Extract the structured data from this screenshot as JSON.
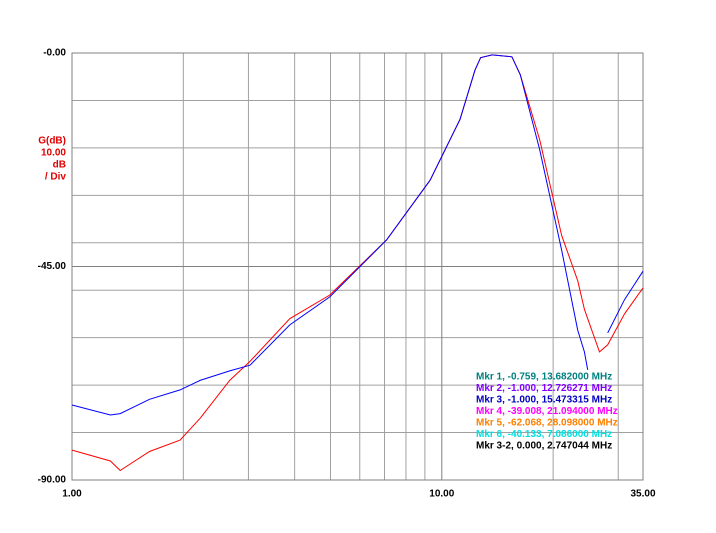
{
  "chart_data": {
    "type": "line",
    "xscale": "log",
    "xlim": [
      1,
      35
    ],
    "ylim": [
      -90,
      0
    ],
    "xticks": [
      {
        "value": 1,
        "label": "1.00"
      },
      {
        "value": 10,
        "label": "10.00"
      },
      {
        "value": 35,
        "label": "35.00"
      }
    ],
    "yticks": [
      {
        "value": 0,
        "label": "-0.00"
      },
      {
        "value": -45,
        "label": "-45.00"
      },
      {
        "value": -90,
        "label": "-90.00"
      }
    ],
    "xgrid": [
      2,
      3,
      4,
      5,
      6,
      7,
      8,
      9,
      20,
      30
    ],
    "ygrid": [
      -10,
      -20,
      -30,
      -40,
      -50,
      -60,
      -70,
      -80
    ],
    "grid": true,
    "y_label_lines": [
      "G(dB)",
      "10.00",
      "dB",
      "/ Div"
    ],
    "y_label_color": "#e00000",
    "x": [
      1.0,
      1.27,
      1.35,
      1.62,
      1.96,
      2.22,
      2.67,
      3.03,
      3.88,
      4.98,
      7.09,
      9.3,
      11.2,
      12.3,
      12.73,
      13.68,
      15.47,
      16.3,
      18.4,
      21.09,
      23.3,
      24.3,
      24.8,
      26.7,
      28.1,
      31.2,
      35
    ],
    "series": [
      {
        "color": "#ff0000",
        "values": [
          -83.7,
          -86,
          -88,
          -84,
          -81.6,
          -77,
          -69,
          -65,
          -56,
          -51,
          -39.4,
          -26.8,
          -14,
          -3.6,
          -1,
          -0.4,
          -0.8,
          -4.6,
          -18.3,
          -38.4,
          -48,
          -54,
          -56,
          -63,
          -61.5,
          -55,
          -49.5
        ]
      },
      {
        "color": "#0000ff",
        "values": [
          -74.2,
          -76.3,
          -76,
          -73,
          -71,
          -69,
          -67,
          -65.8,
          -57.3,
          -51.4,
          -39.4,
          -26.8,
          -14,
          -3.6,
          -1,
          -0.4,
          -0.8,
          -4.6,
          -20.4,
          -41.5,
          -58.4,
          -63,
          -66.8,
          null,
          -59,
          -52,
          -46
        ]
      }
    ],
    "markers": [
      {
        "text": "Mkr 1, -0.759, 13.682000 MHz",
        "color": "#008080"
      },
      {
        "text": "Mkr 2, -1.000, 12.726271 MHz",
        "color": "#8000ff"
      },
      {
        "text": "Mkr 3, -1.000, 15.473315 MHz",
        "color": "#0000c0"
      },
      {
        "text": "Mkr 4, -39.008, 21.094000 MHz",
        "color": "#ff00ff"
      },
      {
        "text": "Mkr 5, -62.068, 28.098000 MHz",
        "color": "#ff8000"
      },
      {
        "text": "Mkr 6, -40.133, 7.086000 MHz",
        "color": "#00e0e0"
      },
      {
        "text": "Mkr 3-2, 0.000, 2.747044 MHz",
        "color": "#000000"
      }
    ]
  }
}
